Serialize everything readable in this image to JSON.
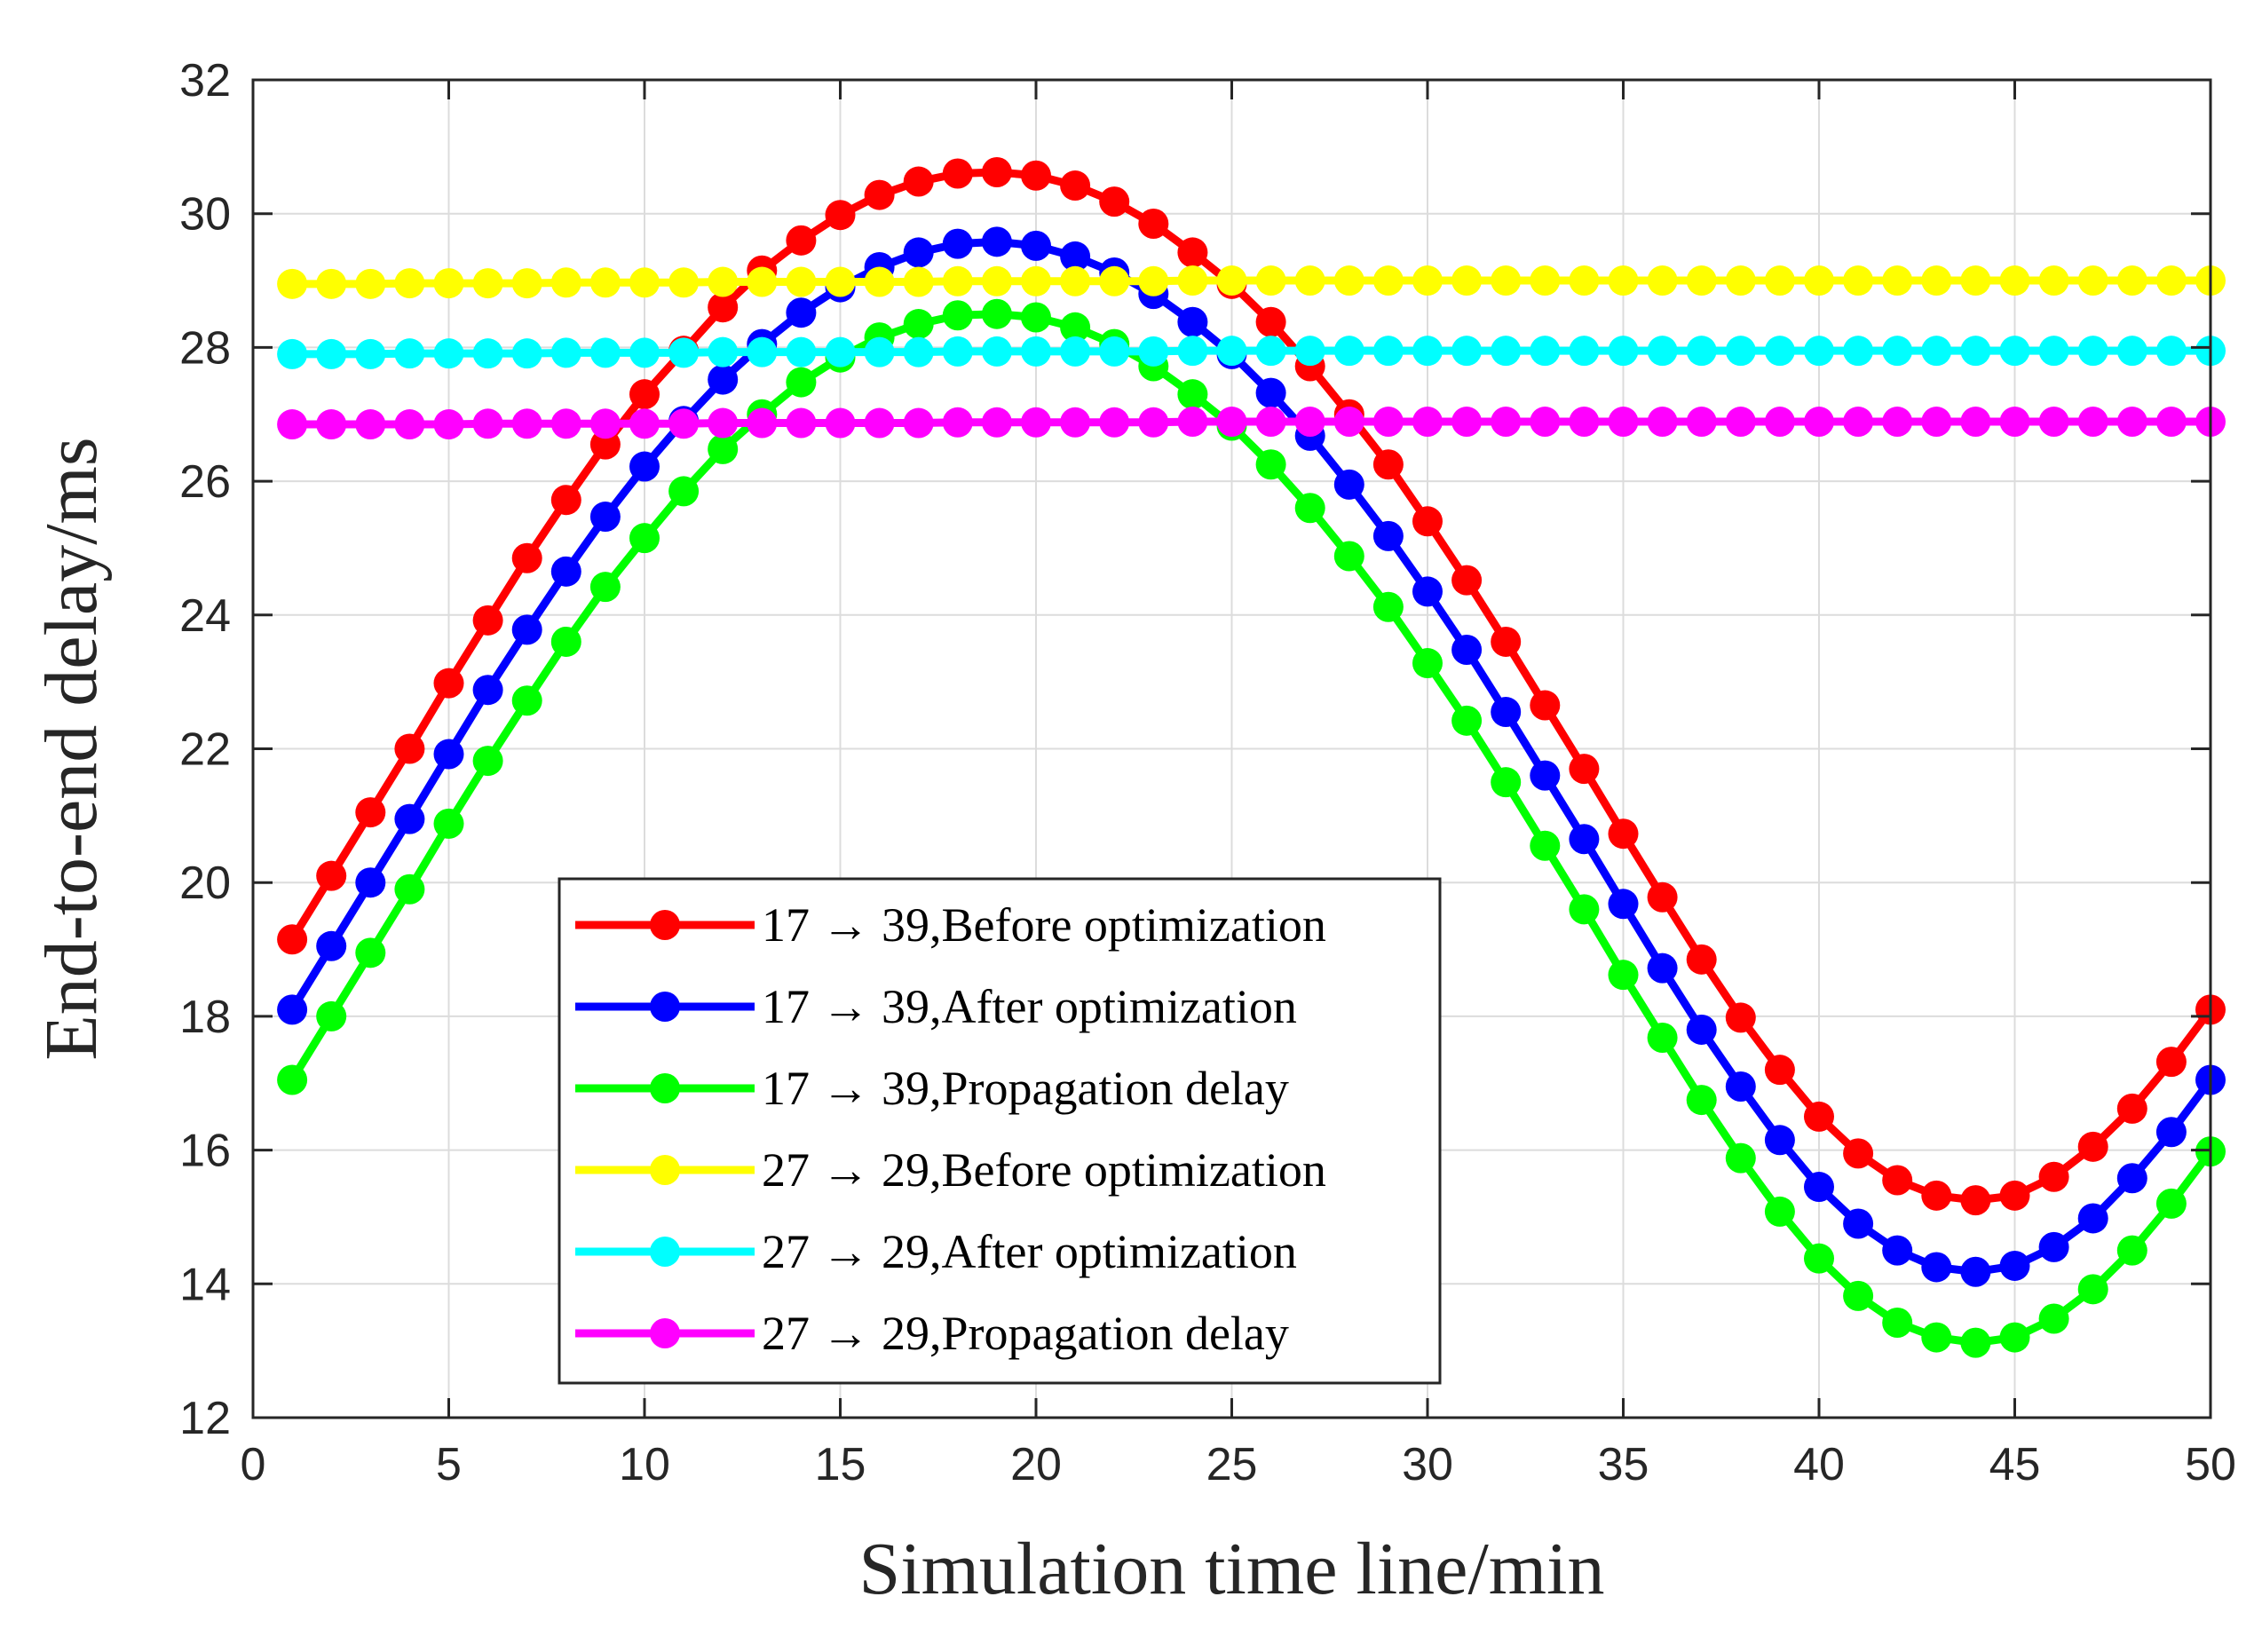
{
  "chart_data": {
    "type": "line",
    "title": "",
    "xlabel": "Simulation time line/min",
    "ylabel": "End-to-end delay/ms",
    "xlim": [
      0,
      50
    ],
    "ylim": [
      12,
      32
    ],
    "xticks": [
      0,
      5,
      10,
      15,
      20,
      25,
      30,
      35,
      40,
      45,
      50
    ],
    "yticks": [
      12,
      14,
      16,
      18,
      20,
      22,
      24,
      26,
      28,
      30,
      32
    ],
    "grid": true,
    "legend_position": "bottom-center",
    "x": [
      1,
      2,
      3,
      4,
      5,
      6,
      7,
      8,
      9,
      10,
      11,
      12,
      13,
      14,
      15,
      16,
      17,
      18,
      19,
      20,
      21,
      22,
      23,
      24,
      25,
      26,
      27,
      28,
      29,
      30,
      31,
      32,
      33,
      34,
      35,
      36,
      37,
      38,
      39,
      40,
      41,
      42,
      43,
      44,
      45,
      46,
      47,
      48,
      49,
      50
    ],
    "series": [
      {
        "name": "17 → 39,Before optimization",
        "color": "#ff0000",
        "values": [
          19.15,
          20.1,
          21.05,
          22.0,
          22.98,
          23.92,
          24.85,
          25.72,
          26.55,
          27.3,
          27.95,
          28.6,
          29.15,
          29.6,
          29.98,
          30.28,
          30.48,
          30.6,
          30.62,
          30.57,
          30.42,
          30.18,
          29.85,
          29.42,
          28.95,
          28.38,
          27.72,
          27.0,
          26.25,
          25.4,
          24.52,
          23.6,
          22.65,
          21.7,
          20.73,
          19.78,
          18.85,
          17.98,
          17.2,
          16.5,
          15.95,
          15.55,
          15.32,
          15.25,
          15.32,
          15.6,
          16.05,
          16.62,
          17.32,
          18.1
        ]
      },
      {
        "name": "17 → 39,After optimization",
        "color": "#0000ff",
        "values": [
          18.1,
          19.05,
          20.0,
          20.95,
          21.92,
          22.88,
          23.78,
          24.65,
          25.47,
          26.22,
          26.9,
          27.52,
          28.05,
          28.52,
          28.9,
          29.2,
          29.42,
          29.55,
          29.58,
          29.52,
          29.36,
          29.12,
          28.8,
          28.38,
          27.9,
          27.32,
          26.68,
          25.95,
          25.18,
          24.35,
          23.48,
          22.55,
          21.6,
          20.65,
          19.68,
          18.72,
          17.8,
          16.95,
          16.15,
          15.45,
          14.9,
          14.5,
          14.25,
          14.18,
          14.27,
          14.55,
          14.98,
          15.58,
          16.27,
          17.05
        ]
      },
      {
        "name": "17 → 39,Propagation delay",
        "color": "#00ff00",
        "values": [
          17.05,
          18.0,
          18.95,
          19.9,
          20.88,
          21.82,
          22.72,
          23.6,
          24.42,
          25.15,
          25.85,
          26.48,
          27.0,
          27.48,
          27.85,
          28.15,
          28.35,
          28.48,
          28.5,
          28.45,
          28.3,
          28.05,
          27.72,
          27.3,
          26.83,
          26.25,
          25.6,
          24.88,
          24.12,
          23.28,
          22.42,
          21.5,
          20.55,
          19.6,
          18.62,
          17.68,
          16.75,
          15.88,
          15.08,
          14.38,
          13.82,
          13.42,
          13.2,
          13.12,
          13.2,
          13.48,
          13.92,
          14.5,
          15.2,
          15.98
        ]
      },
      {
        "name": "27 → 29,Before optimization",
        "color": "#ffff00",
        "values": [
          28.95,
          28.95,
          28.95,
          28.96,
          28.96,
          28.96,
          28.96,
          28.97,
          28.97,
          28.97,
          28.97,
          28.98,
          28.98,
          28.98,
          28.98,
          28.98,
          28.98,
          28.99,
          28.99,
          28.99,
          28.99,
          28.99,
          28.99,
          29.0,
          29.0,
          29.0,
          29.0,
          29.0,
          29.0,
          29.0,
          29.0,
          29.0,
          29.0,
          29.0,
          29.0,
          29.0,
          29.0,
          29.0,
          29.0,
          29.0,
          29.0,
          29.0,
          29.0,
          29.0,
          29.0,
          29.0,
          29.0,
          29.0,
          29.0,
          29.0
        ]
      },
      {
        "name": "27 → 29,After optimization",
        "color": "#00ffff",
        "values": [
          27.9,
          27.9,
          27.9,
          27.91,
          27.91,
          27.91,
          27.91,
          27.92,
          27.92,
          27.92,
          27.92,
          27.93,
          27.93,
          27.93,
          27.93,
          27.93,
          27.93,
          27.94,
          27.94,
          27.94,
          27.94,
          27.94,
          27.94,
          27.95,
          27.95,
          27.95,
          27.95,
          27.95,
          27.95,
          27.95,
          27.95,
          27.95,
          27.95,
          27.95,
          27.95,
          27.95,
          27.95,
          27.95,
          27.95,
          27.95,
          27.95,
          27.95,
          27.95,
          27.95,
          27.95,
          27.95,
          27.95,
          27.95,
          27.95,
          27.95
        ]
      },
      {
        "name": "27 → 29,Propagation delay",
        "color": "#ff00ff",
        "values": [
          26.85,
          26.85,
          26.85,
          26.85,
          26.85,
          26.86,
          26.86,
          26.86,
          26.86,
          26.86,
          26.86,
          26.87,
          26.87,
          26.87,
          26.87,
          26.87,
          26.87,
          26.88,
          26.88,
          26.88,
          26.88,
          26.88,
          26.88,
          26.89,
          26.89,
          26.89,
          26.89,
          26.89,
          26.89,
          26.89,
          26.89,
          26.89,
          26.89,
          26.89,
          26.89,
          26.89,
          26.89,
          26.89,
          26.89,
          26.89,
          26.89,
          26.89,
          26.89,
          26.89,
          26.89,
          26.89,
          26.89,
          26.89,
          26.89,
          26.89
        ]
      }
    ]
  }
}
